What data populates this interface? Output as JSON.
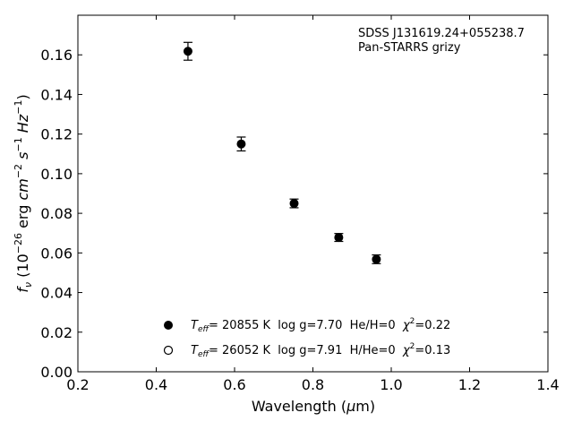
{
  "chart_data": {
    "type": "scatter",
    "annotation_lines": [
      "SDSS J131619.24+055238.7",
      "Pan-STARRS grizy"
    ],
    "xlabel_parts": [
      "Wavelength (",
      "μ",
      "m)"
    ],
    "ylabel_parts": {
      "f": "f",
      "nu": "ν",
      "open": " (10",
      "exp26": "−26",
      "erg": " erg ",
      "cm": "cm",
      "exp2": "−2",
      "s": "s",
      "exp1a": "−1",
      "hz": "Hz",
      "exp1b": "−1",
      "close": ")"
    },
    "xlim": [
      0.2,
      1.4
    ],
    "ylim": [
      0.0,
      0.18
    ],
    "xticks": [
      0.2,
      0.4,
      0.6,
      0.8,
      1.0,
      1.2,
      1.4
    ],
    "xtick_labels": [
      "0.2",
      "0.4",
      "0.6",
      "0.8",
      "1.0",
      "1.2",
      "1.4"
    ],
    "yticks": [
      0.0,
      0.02,
      0.04,
      0.06,
      0.08,
      0.1,
      0.12,
      0.14,
      0.16
    ],
    "ytick_labels": [
      "0.00",
      "0.02",
      "0.04",
      "0.06",
      "0.08",
      "0.10",
      "0.12",
      "0.14",
      "0.16"
    ],
    "grid": false,
    "legend_placement": "lower-center",
    "series": [
      {
        "marker": "filled-circle",
        "color": "#000000",
        "x": [
          0.481,
          0.617,
          0.752,
          0.866,
          0.962
        ],
        "y": [
          0.1618,
          0.115,
          0.085,
          0.0678,
          0.0568
        ],
        "yerr": [
          0.0045,
          0.0035,
          0.0022,
          0.002,
          0.0022
        ]
      },
      {
        "marker": "open-circle",
        "color": "#000000",
        "x": [],
        "y": []
      }
    ],
    "legend": [
      {
        "marker": "filled-circle",
        "t": "T",
        "teff_sub": "eff",
        "pre": "= 20855 K  log g=7.70  He/H=0  ",
        "chi": "χ",
        "chi_sup": "2",
        "post": "=0.22"
      },
      {
        "marker": "open-circle",
        "t": "T",
        "teff_sub": "eff",
        "pre": "= 26052 K  log g=7.91  H/He=0  ",
        "chi": "χ",
        "chi_sup": "2",
        "post": "=0.13"
      }
    ]
  }
}
